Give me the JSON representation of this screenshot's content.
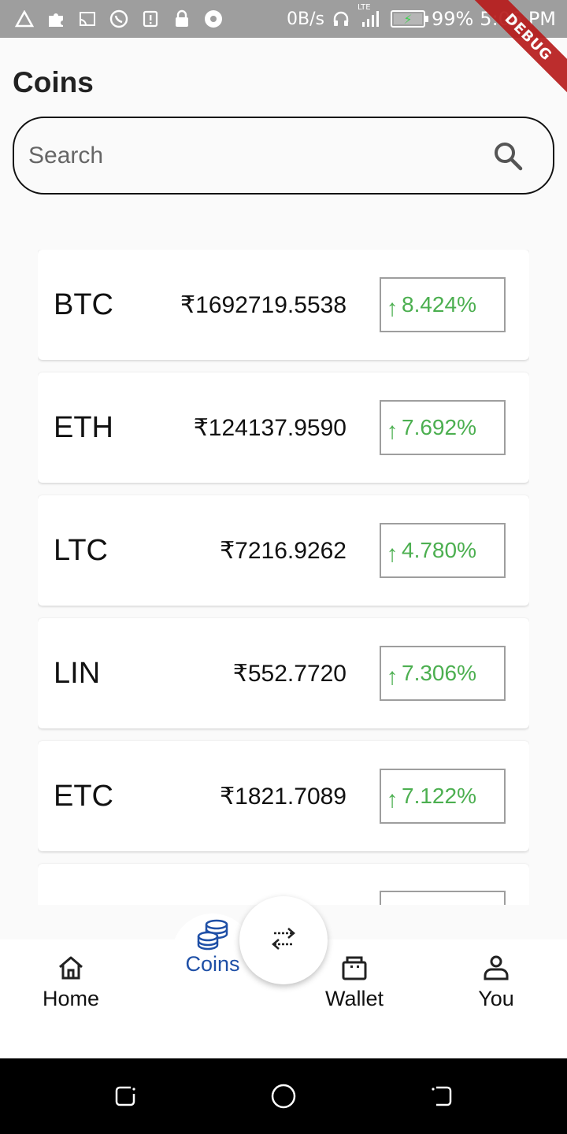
{
  "status_bar": {
    "network_speed": "0B/s",
    "network_type": "LTE",
    "battery": "99%",
    "time": "5:06 PM",
    "icons": [
      "alert-triangle-icon",
      "puzzle-icon",
      "cast-icon",
      "whatsapp-icon",
      "notification-icon",
      "lock-icon",
      "soccer-ball-icon",
      "headphones-icon",
      "signal-icon",
      "battery-icon"
    ]
  },
  "debug_ribbon": "DEBUG",
  "page": {
    "title": "Coins"
  },
  "search": {
    "placeholder": "Search",
    "value": ""
  },
  "coins": [
    {
      "symbol": "BTC",
      "price": "₹1692719.5538",
      "change": "8.424%",
      "direction": "up"
    },
    {
      "symbol": "ETH",
      "price": "₹124137.9590",
      "change": "7.692%",
      "direction": "up"
    },
    {
      "symbol": "LTC",
      "price": "₹7216.9262",
      "change": "4.780%",
      "direction": "up"
    },
    {
      "symbol": "LIN",
      "price": "₹552.7720",
      "change": "7.306%",
      "direction": "up"
    },
    {
      "symbol": "ETC",
      "price": "₹1821.7089",
      "change": "7.122%",
      "direction": "up"
    }
  ],
  "colors": {
    "positive": "#4caf50",
    "active_nav": "#1e4fa6",
    "ribbon": "#b71c1c"
  },
  "bottom_nav": {
    "items": [
      {
        "label": "Home",
        "icon": "home-icon"
      },
      {
        "label": "Coins",
        "icon": "coins-icon",
        "active": true
      },
      {
        "label": "Wallet",
        "icon": "wallet-icon"
      },
      {
        "label": "You",
        "icon": "person-icon"
      }
    ],
    "fab_icon": "swap-arrows-icon"
  }
}
